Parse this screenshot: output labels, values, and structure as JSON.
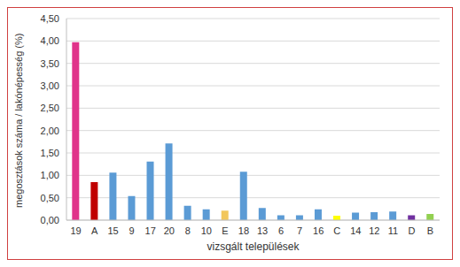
{
  "chart_data": {
    "type": "bar",
    "x_label": "vizsgált települések",
    "y_label": "megosztások száma / lakónépesség (%)",
    "categories": [
      "19",
      "A",
      "15",
      "9",
      "17",
      "20",
      "8",
      "10",
      "E",
      "18",
      "13",
      "6",
      "7",
      "16",
      "C",
      "14",
      "12",
      "11",
      "D",
      "B"
    ],
    "values": [
      3.97,
      0.85,
      1.06,
      0.54,
      1.31,
      1.71,
      0.32,
      0.24,
      0.21,
      1.08,
      0.27,
      0.11,
      0.11,
      0.24,
      0.1,
      0.17,
      0.18,
      0.19,
      0.11,
      0.14
    ],
    "colors": [
      "#e0338a",
      "#c00000",
      "#5b9bd5",
      "#5b9bd5",
      "#5b9bd5",
      "#5b9bd5",
      "#5b9bd5",
      "#5b9bd5",
      "#f2c75c",
      "#5b9bd5",
      "#5b9bd5",
      "#5b9bd5",
      "#5b9bd5",
      "#5b9bd5",
      "#ffff00",
      "#5b9bd5",
      "#5b9bd5",
      "#5b9bd5",
      "#7030a0",
      "#92d050"
    ],
    "ylim": [
      0,
      4.5
    ],
    "yticks": [
      {
        "value": 0,
        "label": "0,00"
      },
      {
        "value": 0.5,
        "label": "0,50"
      },
      {
        "value": 1,
        "label": "1,00"
      },
      {
        "value": 1.5,
        "label": "1,50"
      },
      {
        "value": 2,
        "label": "2,00"
      },
      {
        "value": 2.5,
        "label": "2,50"
      },
      {
        "value": 3,
        "label": "3,00"
      },
      {
        "value": 3.5,
        "label": "3,50"
      },
      {
        "value": 4,
        "label": "4,00"
      },
      {
        "value": 4.5,
        "label": "4,50"
      }
    ],
    "grid": true
  }
}
